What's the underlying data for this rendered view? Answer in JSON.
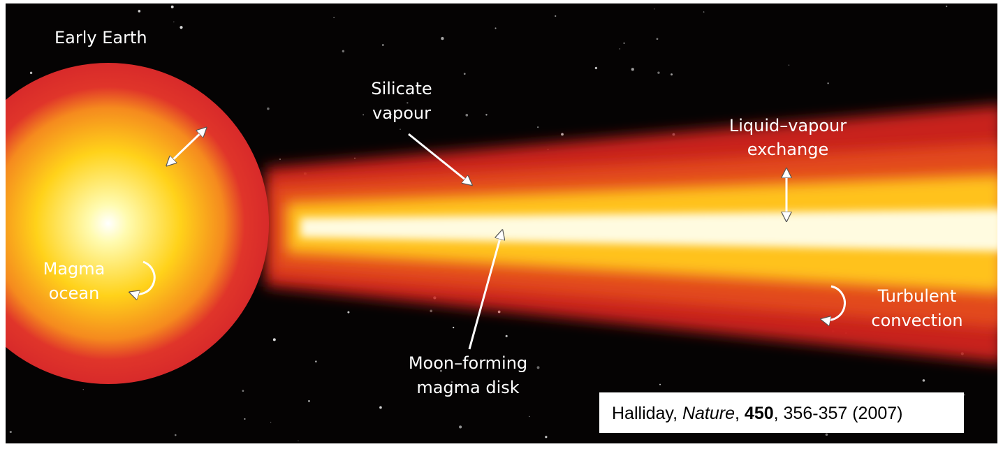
{
  "labels": {
    "early_earth": "Early Earth",
    "silicate_vapour": [
      "Silicate",
      "vapour"
    ],
    "liquid_vapour_exchange": [
      "Liquid–vapour",
      "exchange"
    ],
    "magma_ocean": [
      "Magma",
      "ocean"
    ],
    "moon_forming_disk": [
      "Moon–forming",
      "magma disk"
    ],
    "turbulent_convection": [
      "Turbulent",
      "convection"
    ]
  },
  "citation": {
    "parts": [
      "Halliday, ",
      "Nature",
      ", ",
      "450",
      ", 356-357 (2007)"
    ]
  }
}
